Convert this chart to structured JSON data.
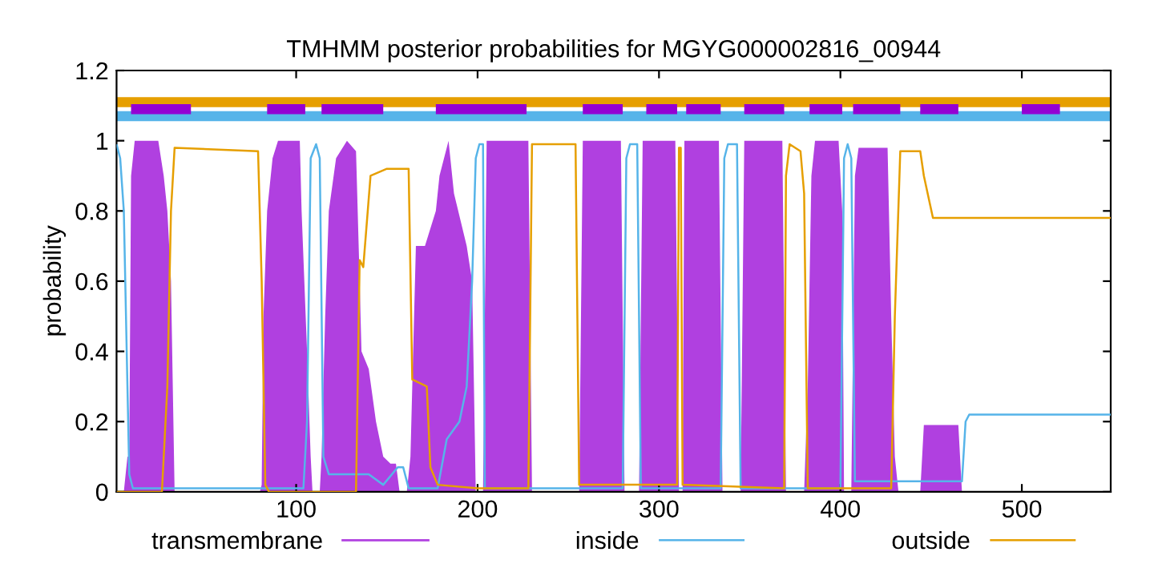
{
  "chart_data": {
    "type": "line",
    "title": "TMHMM posterior probabilities for MGYG000002816_00944",
    "ylabel": "probability",
    "xlim": [
      1,
      549
    ],
    "xticks": [
      100,
      200,
      300,
      400,
      500
    ],
    "ylim": [
      0,
      1.2
    ],
    "yticks": [
      0,
      0.2,
      0.4,
      0.6,
      0.8,
      1,
      1.2
    ],
    "legend": "bottom",
    "grid": false,
    "series": [
      {
        "name": "transmembrane",
        "type": "area",
        "color": "#b040e0",
        "x": [
          1,
          5,
          7,
          8,
          9,
          11,
          24,
          27,
          29,
          31,
          33,
          80,
          81,
          82,
          84,
          87,
          90,
          102,
          103,
          106,
          108,
          109,
          113,
          114,
          116,
          118,
          122,
          128,
          133,
          135,
          136,
          140,
          144,
          148,
          152,
          155,
          157,
          161,
          163,
          166,
          171,
          177,
          179,
          184,
          187,
          194,
          197,
          199,
          203,
          205,
          228,
          230,
          256,
          258,
          279,
          281,
          289,
          291,
          309,
          311,
          313,
          314,
          333,
          335,
          345,
          347,
          368,
          370,
          380,
          382,
          384,
          386,
          399,
          401,
          402,
          406,
          408,
          410,
          426,
          428,
          430,
          432,
          444,
          446,
          465,
          467,
          549
        ],
        "values": [
          0,
          0,
          0.1,
          0.1,
          0.9,
          1,
          1,
          0.9,
          0.8,
          0.6,
          0,
          0,
          0.02,
          0.5,
          0.8,
          0.95,
          1,
          1,
          0.8,
          0.4,
          0.1,
          0,
          0,
          0.1,
          0.5,
          0.8,
          0.95,
          1,
          0.97,
          0.6,
          0.4,
          0.35,
          0.2,
          0.1,
          0.08,
          0.08,
          0,
          0,
          0.1,
          0.7,
          0.7,
          0.8,
          0.9,
          1,
          0.85,
          0.7,
          0.6,
          0,
          0,
          1,
          1,
          0,
          0,
          1,
          1,
          0,
          0,
          1,
          1,
          0,
          0,
          1,
          1,
          0,
          0,
          1,
          1,
          0,
          0,
          0.3,
          0.9,
          1,
          1,
          0.8,
          0,
          0,
          0.9,
          0.98,
          0.98,
          0.5,
          0.1,
          0,
          0,
          0.19,
          0.19,
          0,
          0
        ]
      },
      {
        "name": "inside",
        "color": "#56b4e9",
        "x": [
          1,
          3,
          5,
          8,
          10,
          104,
          106,
          108,
          111,
          113,
          115,
          118,
          140,
          148,
          156,
          159,
          162,
          178,
          183,
          190,
          194,
          197,
          199,
          201,
          203,
          204,
          280,
          282,
          284,
          288,
          290,
          334,
          336,
          338,
          343,
          345,
          400,
          402,
          404,
          406,
          408,
          467,
          469,
          471,
          549
        ],
        "values": [
          0.99,
          0.95,
          0.8,
          0.05,
          0.01,
          0.01,
          0.2,
          0.95,
          0.99,
          0.95,
          0.1,
          0.05,
          0.05,
          0.02,
          0.07,
          0.07,
          0.01,
          0.01,
          0.15,
          0.2,
          0.3,
          0.6,
          0.95,
          0.99,
          0.99,
          0.01,
          0.01,
          0.95,
          0.99,
          0.99,
          0.01,
          0.01,
          0.95,
          0.99,
          0.99,
          0.01,
          0.01,
          0.95,
          0.99,
          0.95,
          0.03,
          0.03,
          0.2,
          0.22,
          0.22
        ]
      },
      {
        "name": "outside",
        "color": "#e69f00",
        "x": [
          1,
          26,
          29,
          31,
          33,
          79,
          81,
          83,
          85,
          133,
          135,
          137,
          141,
          150,
          162,
          164,
          172,
          174,
          178,
          200,
          228,
          230,
          254,
          256,
          310,
          311,
          312,
          313,
          369,
          370,
          372,
          378,
          380,
          382,
          428,
          430,
          433,
          444,
          446,
          451,
          549
        ],
        "values": [
          0,
          0,
          0.3,
          0.8,
          0.98,
          0.97,
          0.6,
          0.02,
          0,
          0,
          0.66,
          0.64,
          0.9,
          0.92,
          0.92,
          0.32,
          0.3,
          0.07,
          0.02,
          0.01,
          0.01,
          0.99,
          0.99,
          0.02,
          0.02,
          0.98,
          0.98,
          0.02,
          0.01,
          0.9,
          0.99,
          0.97,
          0.85,
          0.01,
          0.01,
          0.5,
          0.97,
          0.97,
          0.9,
          0.78,
          0.78
        ]
      },
      {
        "color": "#e69f00",
        "x": [
          1,
          549
        ],
        "values": [
          1.11,
          1.11
        ]
      },
      {
        "color": "#56b4e9",
        "x": [
          1,
          549
        ],
        "values": [
          1.07,
          1.07
        ]
      },
      {
        "color": "#9400d3",
        "x": [
          9,
          42,
          43,
          84,
          105,
          106,
          114,
          148,
          149,
          177,
          227,
          228,
          258,
          280,
          281,
          293,
          310,
          311,
          315,
          334,
          335,
          347,
          369,
          370,
          383,
          401,
          402,
          407,
          433,
          434,
          444,
          465,
          466,
          500,
          521
        ],
        "values": [
          1.09,
          1.09,
          null,
          1.09,
          1.09,
          null,
          1.09,
          1.09,
          null,
          1.09,
          1.09,
          null,
          1.09,
          1.09,
          null,
          1.09,
          1.09,
          null,
          1.09,
          1.09,
          null,
          1.09,
          1.09,
          null,
          1.09,
          1.09,
          null,
          1.09,
          1.09,
          null,
          1.09,
          1.09,
          null,
          1.09,
          1.09
        ]
      }
    ]
  }
}
